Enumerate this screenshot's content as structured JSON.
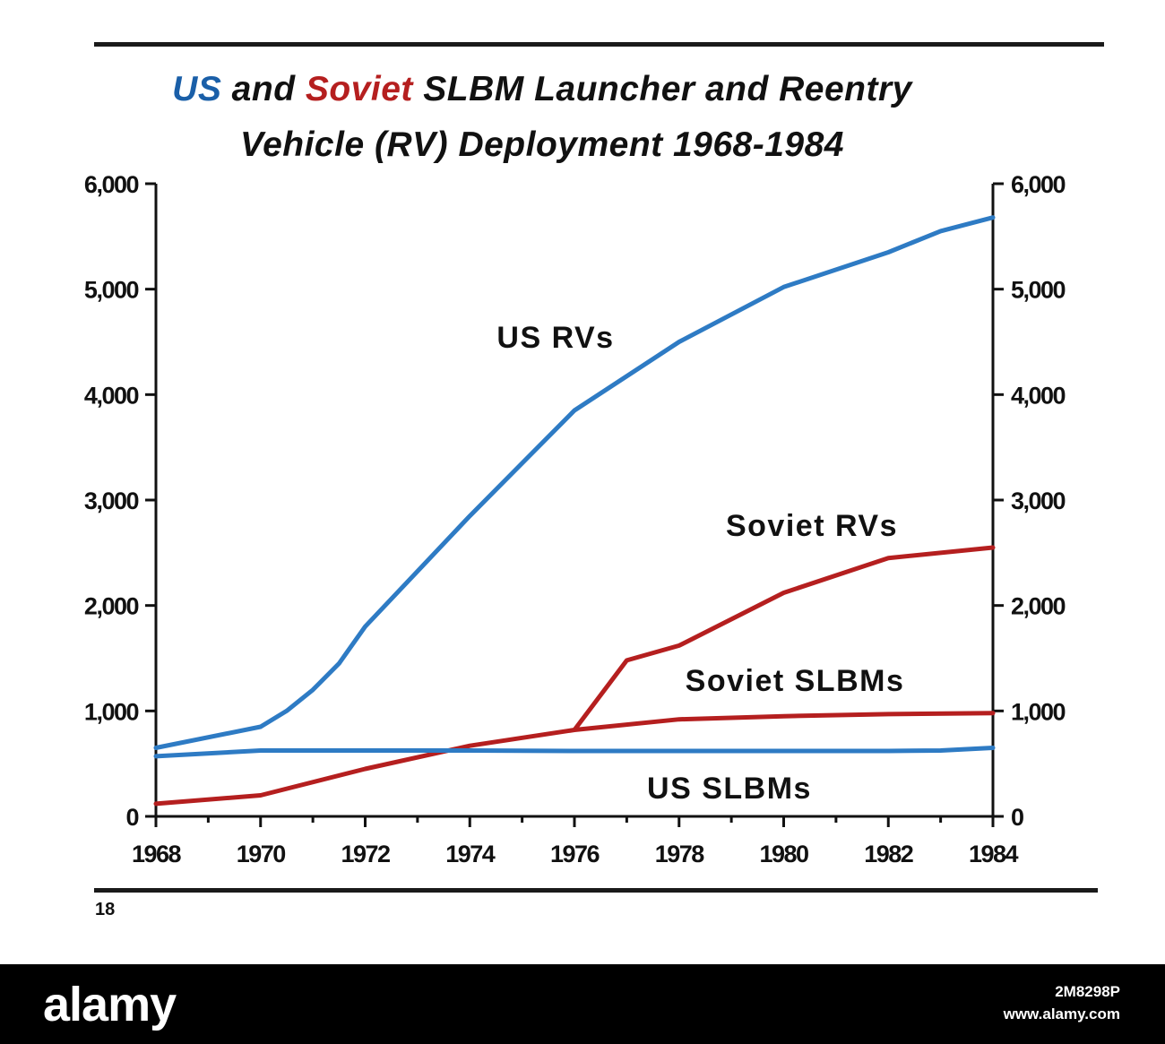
{
  "chart_data": {
    "type": "line",
    "title": {
      "line1": [
        "US",
        " and ",
        "Soviet",
        " SLBM Launcher and Reentry"
      ],
      "line2": "Vehicle (RV) Deployment 1968-1984"
    },
    "xlabel": "",
    "ylabel": "",
    "xlim": [
      1968,
      1984
    ],
    "ylim": [
      0,
      6000
    ],
    "x_ticks": [
      "1968",
      "1970",
      "1972",
      "1974",
      "1976",
      "1978",
      "1980",
      "1982",
      "1984"
    ],
    "y_ticks": [
      "0",
      "1,000",
      "2,000",
      "3,000",
      "4,000",
      "5,000",
      "6,000"
    ],
    "y_tick_values": [
      0,
      1000,
      2000,
      3000,
      4000,
      5000,
      6000
    ],
    "grid": false,
    "legend": "inline labels",
    "series": [
      {
        "name": "US RVs",
        "color": "#2e7bc4",
        "x": [
          1968,
          1970,
          1970.5,
          1971,
          1971.5,
          1972,
          1974,
          1976,
          1978,
          1980,
          1982,
          1983,
          1984
        ],
        "y": [
          650,
          850,
          1000,
          1200,
          1450,
          1800,
          2850,
          3850,
          4500,
          5020,
          5350,
          5550,
          5680
        ]
      },
      {
        "name": "Soviet RVs",
        "color": "#b51f1f",
        "x": [
          1976,
          1977,
          1978,
          1980,
          1982,
          1984
        ],
        "y": [
          820,
          1480,
          1620,
          2120,
          2450,
          2550
        ]
      },
      {
        "name": "Soviet SLBMs",
        "color": "#b51f1f",
        "x": [
          1968,
          1970,
          1972,
          1974,
          1976,
          1978,
          1980,
          1982,
          1984
        ],
        "y": [
          120,
          200,
          450,
          670,
          820,
          920,
          950,
          970,
          980
        ]
      },
      {
        "name": "US SLBMs",
        "color": "#2e7bc4",
        "x": [
          1968,
          1970,
          1972,
          1974,
          1976,
          1978,
          1980,
          1982,
          1983,
          1984
        ],
        "y": [
          570,
          625,
          625,
          625,
          620,
          620,
          620,
          620,
          625,
          650
        ]
      }
    ]
  },
  "page": {
    "number": "18"
  },
  "footer": {
    "logo": "alamy",
    "image_id": "2M8298P",
    "site": "www.alamy.com"
  }
}
